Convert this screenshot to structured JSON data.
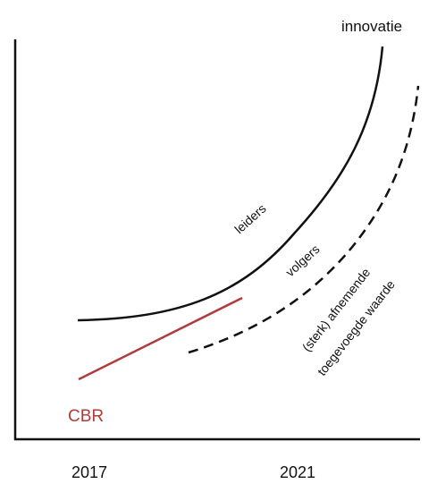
{
  "diagram": {
    "y_axis_label": "innovatie",
    "x_ticks": [
      "2017",
      "2021"
    ],
    "curve_labels": {
      "leaders": "leiders",
      "followers": "volgers",
      "declining_line1": "(sterk) afnemende",
      "declining_line2": "toegevoegde waarde"
    },
    "cbr_label": "CBR"
  },
  "colors": {
    "axis": "#111111",
    "curve": "#111111",
    "cbr": "#b23a3a"
  }
}
